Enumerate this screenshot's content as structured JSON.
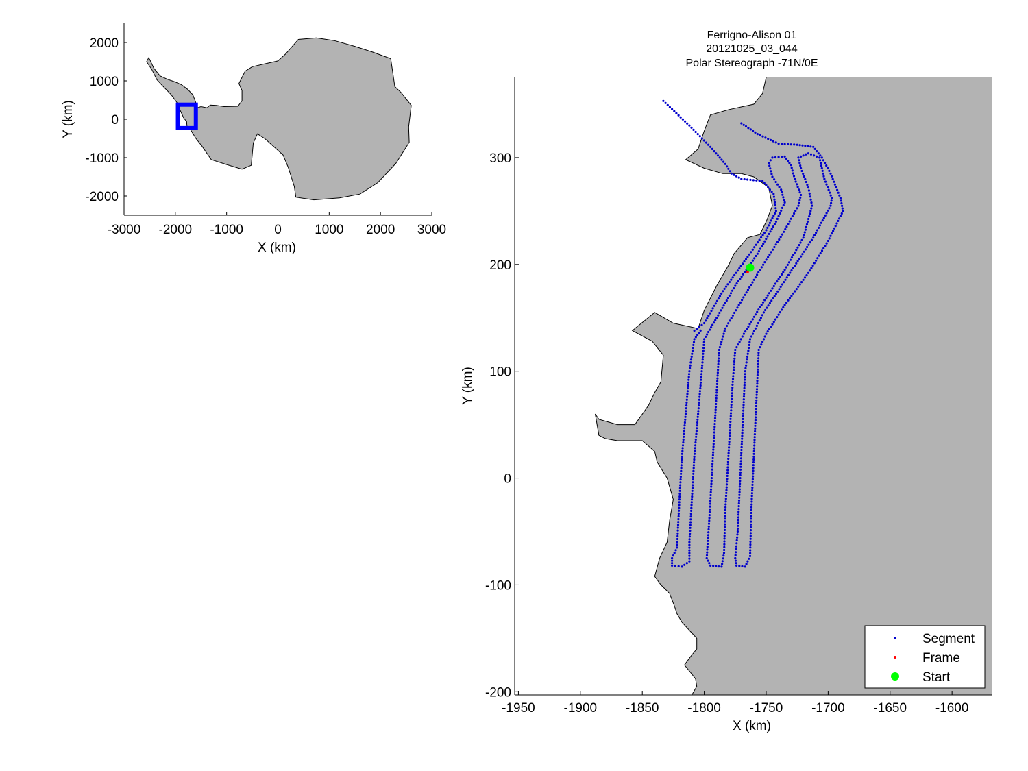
{
  "chart_data": [
    {
      "id": "overview",
      "type": "map",
      "xlabel": "X (km)",
      "ylabel": "Y (km)",
      "xlim": [
        -3000,
        3000
      ],
      "ylim": [
        -2500,
        2500
      ],
      "xticks": [
        -3000,
        -2000,
        -1000,
        0,
        1000,
        2000,
        3000
      ],
      "yticks": [
        -2000,
        -1000,
        0,
        1000,
        2000
      ],
      "landmass_color": "#b3b3b3",
      "highlight_box": {
        "color": "#0000ff",
        "x": [
          -1950,
          -1600
        ],
        "y": [
          -230,
          380
        ]
      },
      "outline": [
        [
          -2500,
          1560
        ],
        [
          -2420,
          1330
        ],
        [
          -2300,
          1130
        ],
        [
          -2150,
          1040
        ],
        [
          -2020,
          980
        ],
        [
          -1880,
          900
        ],
        [
          -1760,
          780
        ],
        [
          -1660,
          640
        ],
        [
          -1610,
          470
        ],
        [
          -1570,
          300
        ],
        [
          -1500,
          330
        ],
        [
          -1380,
          300
        ],
        [
          -1320,
          370
        ],
        [
          -1200,
          360
        ],
        [
          -1050,
          330
        ],
        [
          -780,
          340
        ],
        [
          -700,
          480
        ],
        [
          -700,
          750
        ],
        [
          -760,
          930
        ],
        [
          -640,
          1250
        ],
        [
          -500,
          1370
        ],
        [
          -300,
          1430
        ],
        [
          0,
          1520
        ],
        [
          150,
          1700
        ],
        [
          400,
          2080
        ],
        [
          750,
          2120
        ],
        [
          1100,
          2050
        ],
        [
          1500,
          1900
        ],
        [
          1850,
          1750
        ],
        [
          2200,
          1580
        ],
        [
          2280,
          850
        ],
        [
          2400,
          700
        ],
        [
          2600,
          360
        ],
        [
          2550,
          -200
        ],
        [
          2560,
          -600
        ],
        [
          2300,
          -1150
        ],
        [
          1950,
          -1650
        ],
        [
          1600,
          -1950
        ],
        [
          1200,
          -2050
        ],
        [
          700,
          -2100
        ],
        [
          350,
          -2030
        ],
        [
          320,
          -1750
        ],
        [
          200,
          -1250
        ],
        [
          100,
          -930
        ],
        [
          -50,
          -750
        ],
        [
          -250,
          -510
        ],
        [
          -400,
          -380
        ],
        [
          -480,
          -620
        ],
        [
          -520,
          -1200
        ],
        [
          -700,
          -1300
        ],
        [
          -1000,
          -1180
        ],
        [
          -1300,
          -1050
        ],
        [
          -1480,
          -700
        ],
        [
          -1600,
          -500
        ],
        [
          -1700,
          -280
        ],
        [
          -1770,
          -220
        ],
        [
          -1780,
          -60
        ],
        [
          -1840,
          40
        ],
        [
          -1880,
          160
        ],
        [
          -1930,
          300
        ],
        [
          -1960,
          420
        ],
        [
          -2080,
          640
        ],
        [
          -2220,
          830
        ],
        [
          -2360,
          1030
        ],
        [
          -2460,
          1300
        ],
        [
          -2560,
          1500
        ],
        [
          -2520,
          1600
        ]
      ]
    },
    {
      "id": "flight",
      "type": "scatter",
      "title": [
        "Ferrigno-Alison 01",
        "20121025_03_044",
        "Polar Stereograph -71N/0E"
      ],
      "xlabel": "X (km)",
      "ylabel": "Y (km)",
      "xlim": [
        -1953,
        -1568
      ],
      "ylim": [
        -203,
        375
      ],
      "xticks": [
        -1950,
        -1900,
        -1850,
        -1800,
        -1750,
        -1700,
        -1650,
        -1600
      ],
      "yticks": [
        -200,
        -100,
        0,
        100,
        200,
        300
      ],
      "land_color": "#b3b3b3",
      "coastline": [
        [
          -1750,
          375
        ],
        [
          -1753,
          360
        ],
        [
          -1760,
          350
        ],
        [
          -1780,
          345
        ],
        [
          -1795,
          340
        ],
        [
          -1800,
          325
        ],
        [
          -1805,
          308
        ],
        [
          -1815,
          298
        ],
        [
          -1800,
          290
        ],
        [
          -1785,
          285
        ],
        [
          -1770,
          285
        ],
        [
          -1760,
          282
        ],
        [
          -1748,
          272
        ],
        [
          -1745,
          255
        ],
        [
          -1750,
          240
        ],
        [
          -1755,
          228
        ],
        [
          -1765,
          225
        ],
        [
          -1776,
          210
        ],
        [
          -1780,
          200
        ],
        [
          -1790,
          180
        ],
        [
          -1800,
          157
        ],
        [
          -1805,
          140
        ],
        [
          -1825,
          145
        ],
        [
          -1840,
          155
        ],
        [
          -1858,
          138
        ],
        [
          -1842,
          128
        ],
        [
          -1833,
          115
        ],
        [
          -1835,
          90
        ],
        [
          -1840,
          80
        ],
        [
          -1845,
          68
        ],
        [
          -1856,
          50
        ],
        [
          -1870,
          50
        ],
        [
          -1885,
          55
        ],
        [
          -1888,
          60
        ],
        [
          -1885,
          40
        ],
        [
          -1880,
          37
        ],
        [
          -1870,
          35
        ],
        [
          -1850,
          35
        ],
        [
          -1840,
          25
        ],
        [
          -1838,
          15
        ],
        [
          -1830,
          0
        ],
        [
          -1825,
          -20
        ],
        [
          -1828,
          -40
        ],
        [
          -1830,
          -60
        ],
        [
          -1836,
          -75
        ],
        [
          -1840,
          -92
        ],
        [
          -1835,
          -100
        ],
        [
          -1828,
          -108
        ],
        [
          -1824,
          -120
        ],
        [
          -1822,
          -127
        ],
        [
          -1818,
          -135
        ],
        [
          -1810,
          -145
        ],
        [
          -1806,
          -150
        ],
        [
          -1806,
          -160
        ],
        [
          -1811,
          -167
        ],
        [
          -1816,
          -175
        ],
        [
          -1811,
          -182
        ],
        [
          -1807,
          -188
        ],
        [
          -1806,
          -195
        ],
        [
          -1810,
          -203
        ]
      ],
      "series": [
        {
          "name": "Segment",
          "color": "#0000cc",
          "paths": [
            [
              [
                -1833,
                353
              ],
              [
                -1812,
                330
              ],
              [
                -1795,
                310
              ],
              [
                -1783,
                294
              ],
              [
                -1778,
                285
              ],
              [
                -1770,
                280
              ],
              [
                -1753,
                278
              ],
              [
                -1744,
                266
              ],
              [
                -1742,
                250
              ],
              [
                -1750,
                232
              ],
              [
                -1765,
                207
              ],
              [
                -1785,
                175
              ],
              [
                -1800,
                145
              ],
              [
                -1808,
                138
              ]
            ],
            [
              [
                -1803,
                138
              ],
              [
                -1808,
                130
              ],
              [
                -1812,
                100
              ],
              [
                -1815,
                60
              ],
              [
                -1818,
                20
              ],
              [
                -1820,
                -20
              ],
              [
                -1822,
                -65
              ],
              [
                -1826,
                -75
              ],
              [
                -1826,
                -82
              ],
              [
                -1818,
                -83
              ],
              [
                -1812,
                -78
              ],
              [
                -1812,
                -60
              ],
              [
                -1810,
                -20
              ],
              [
                -1808,
                20
              ],
              [
                -1805,
                60
              ],
              [
                -1802,
                100
              ],
              [
                -1800,
                130
              ],
              [
                -1790,
                150
              ],
              [
                -1775,
                180
              ],
              [
                -1757,
                210
              ],
              [
                -1742,
                240
              ],
              [
                -1735,
                258
              ],
              [
                -1738,
                270
              ],
              [
                -1745,
                282
              ],
              [
                -1748,
                295
              ],
              [
                -1745,
                300
              ],
              [
                -1735,
                301
              ],
              [
                -1730,
                293
              ],
              [
                -1727,
                280
              ],
              [
                -1722,
                265
              ],
              [
                -1724,
                255
              ],
              [
                -1737,
                228
              ],
              [
                -1755,
                195
              ],
              [
                -1772,
                162
              ],
              [
                -1783,
                140
              ],
              [
                -1788,
                120
              ],
              [
                -1790,
                80
              ],
              [
                -1792,
                40
              ],
              [
                -1794,
                0
              ],
              [
                -1796,
                -40
              ],
              [
                -1798,
                -75
              ],
              [
                -1795,
                -82
              ],
              [
                -1786,
                -83
              ],
              [
                -1784,
                -70
              ],
              [
                -1783,
                -30
              ],
              [
                -1781,
                10
              ],
              [
                -1779,
                50
              ],
              [
                -1777,
                90
              ],
              [
                -1775,
                120
              ],
              [
                -1768,
                135
              ],
              [
                -1755,
                160
              ],
              [
                -1735,
                195
              ],
              [
                -1720,
                225
              ],
              [
                -1713,
                255
              ],
              [
                -1716,
                272
              ],
              [
                -1722,
                290
              ],
              [
                -1724,
                300
              ],
              [
                -1716,
                304
              ],
              [
                -1707,
                300
              ],
              [
                -1703,
                280
              ],
              [
                -1697,
                262
              ],
              [
                -1698,
                255
              ],
              [
                -1712,
                225
              ],
              [
                -1732,
                190
              ],
              [
                -1752,
                155
              ],
              [
                -1763,
                130
              ],
              [
                -1767,
                100
              ],
              [
                -1769,
                50
              ],
              [
                -1771,
                0
              ],
              [
                -1773,
                -50
              ],
              [
                -1775,
                -75
              ],
              [
                -1774,
                -82
              ],
              [
                -1767,
                -83
              ],
              [
                -1763,
                -73
              ],
              [
                -1762,
                -30
              ],
              [
                -1760,
                20
              ],
              [
                -1758,
                70
              ],
              [
                -1756,
                120
              ],
              [
                -1750,
                135
              ],
              [
                -1735,
                162
              ],
              [
                -1716,
                192
              ],
              [
                -1700,
                222
              ],
              [
                -1688,
                250
              ],
              [
                -1690,
                262
              ],
              [
                -1698,
                285
              ],
              [
                -1705,
                300
              ],
              [
                -1712,
                310
              ],
              [
                -1725,
                312
              ],
              [
                -1740,
                313
              ],
              [
                -1757,
                322
              ],
              [
                -1770,
                332
              ]
            ]
          ]
        },
        {
          "name": "Frame",
          "color": "#ff0000",
          "points": [
            [
              -1765,
              193
            ]
          ]
        },
        {
          "name": "Start",
          "color": "#00ff00",
          "points": [
            [
              -1763,
              197
            ]
          ]
        }
      ],
      "legend": {
        "position": "bottom-right",
        "entries": [
          {
            "label": "Segment",
            "color": "#0000cc",
            "marker": "dot"
          },
          {
            "label": "Frame",
            "color": "#ff0000",
            "marker": "dot"
          },
          {
            "label": "Start",
            "color": "#00ff00",
            "marker": "circle"
          }
        ]
      }
    }
  ]
}
